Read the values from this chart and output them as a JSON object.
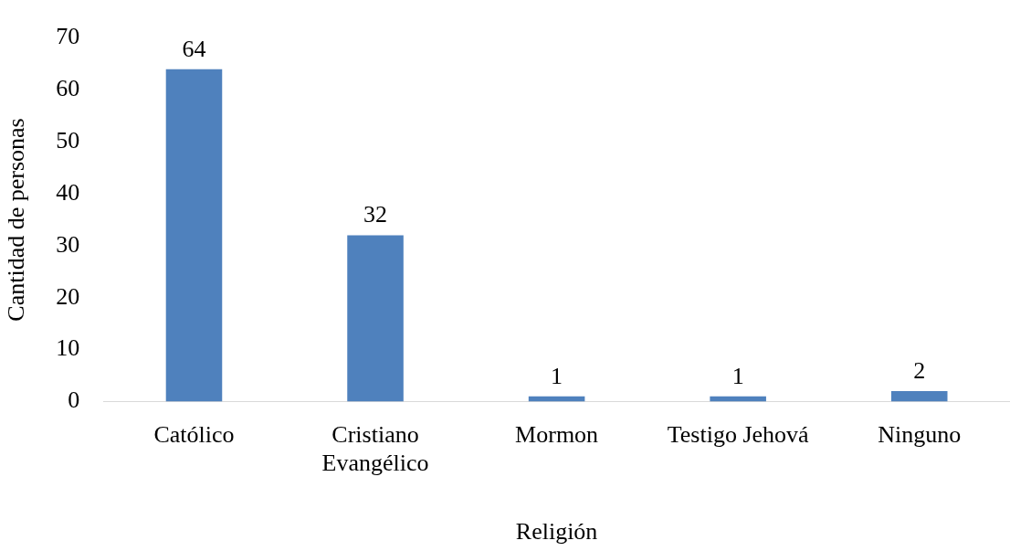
{
  "chart_data": {
    "type": "bar",
    "xlabel": "Religión",
    "ylabel": "Cantidad de personas",
    "categories": [
      "Católico",
      "Cristiano Evangélico",
      "Mormon",
      "Testigo Jehová",
      "Ninguno"
    ],
    "values": [
      64,
      32,
      1,
      1,
      2
    ],
    "color": "#4f81bd",
    "ylim": [
      0,
      70
    ],
    "yticks": [
      0,
      10,
      20,
      30,
      40,
      50,
      60,
      70
    ],
    "grid": false,
    "legend": false,
    "data_labels": true
  }
}
